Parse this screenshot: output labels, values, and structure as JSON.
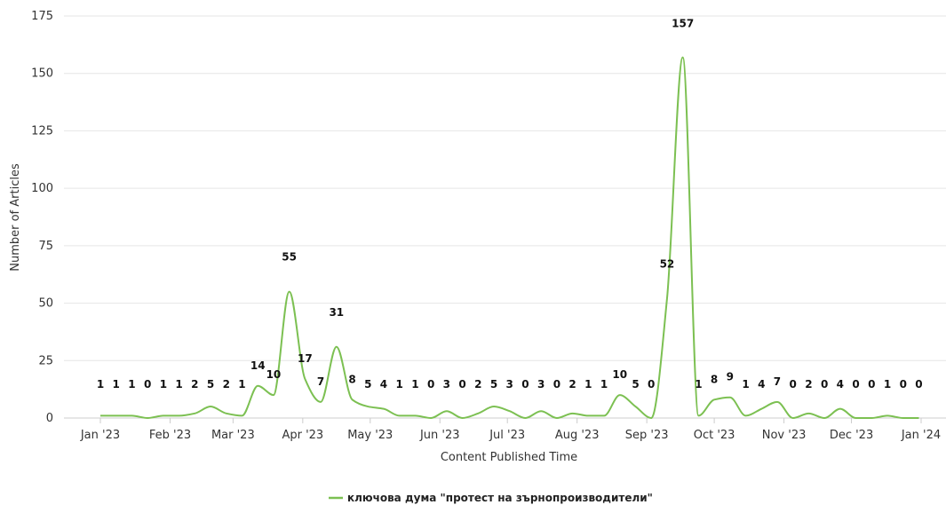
{
  "chart_data": {
    "type": "line",
    "xlabel": "Content Published Time",
    "ylabel": "Number of Articles",
    "ylim": [
      0,
      175
    ],
    "yticks": [
      0,
      25,
      50,
      75,
      100,
      125,
      150,
      175
    ],
    "x_ticks": [
      {
        "date": "2023-01-01",
        "label": "Jan '23"
      },
      {
        "date": "2023-02-01",
        "label": "Feb '23"
      },
      {
        "date": "2023-03-01",
        "label": "Mar '23"
      },
      {
        "date": "2023-04-01",
        "label": "Apr '23"
      },
      {
        "date": "2023-05-01",
        "label": "May '23"
      },
      {
        "date": "2023-06-01",
        "label": "Jun '23"
      },
      {
        "date": "2023-07-01",
        "label": "Jul '23"
      },
      {
        "date": "2023-08-01",
        "label": "Aug '23"
      },
      {
        "date": "2023-09-01",
        "label": "Sep '23"
      },
      {
        "date": "2023-10-01",
        "label": "Oct '23"
      },
      {
        "date": "2023-11-01",
        "label": "Nov '23"
      },
      {
        "date": "2023-12-01",
        "label": "Dec '23"
      },
      {
        "date": "2024-01-01",
        "label": "Jan '24"
      }
    ],
    "grid": true,
    "legend_position": "bottom-center",
    "series": [
      {
        "name": "ключова дума \"протест на зърнопроизводители\"",
        "color": "#7cc052",
        "x": [
          "2023-01-01",
          "2023-01-08",
          "2023-01-15",
          "2023-01-22",
          "2023-01-29",
          "2023-02-05",
          "2023-02-12",
          "2023-02-19",
          "2023-02-26",
          "2023-03-05",
          "2023-03-12",
          "2023-03-19",
          "2023-03-26",
          "2023-04-02",
          "2023-04-09",
          "2023-04-16",
          "2023-04-23",
          "2023-04-30",
          "2023-05-07",
          "2023-05-14",
          "2023-05-21",
          "2023-05-28",
          "2023-06-04",
          "2023-06-11",
          "2023-06-18",
          "2023-06-25",
          "2023-07-02",
          "2023-07-09",
          "2023-07-16",
          "2023-07-23",
          "2023-07-30",
          "2023-08-06",
          "2023-08-13",
          "2023-08-20",
          "2023-08-27",
          "2023-09-03",
          "2023-09-10",
          "2023-09-17",
          "2023-09-24",
          "2023-10-01",
          "2023-10-08",
          "2023-10-15",
          "2023-10-22",
          "2023-10-29",
          "2023-11-05",
          "2023-11-12",
          "2023-11-19",
          "2023-11-26",
          "2023-12-03",
          "2023-12-10",
          "2023-12-17",
          "2023-12-24",
          "2023-12-31"
        ],
        "values": [
          1,
          1,
          1,
          0,
          1,
          1,
          2,
          5,
          2,
          1,
          14,
          10,
          55,
          17,
          7,
          31,
          8,
          5,
          4,
          1,
          1,
          0,
          3,
          0,
          2,
          5,
          3,
          0,
          3,
          0,
          2,
          1,
          1,
          10,
          5,
          0,
          52,
          157,
          1,
          8,
          9,
          1,
          4,
          7,
          0,
          2,
          0,
          4,
          0,
          0,
          1,
          0,
          0
        ]
      }
    ]
  }
}
